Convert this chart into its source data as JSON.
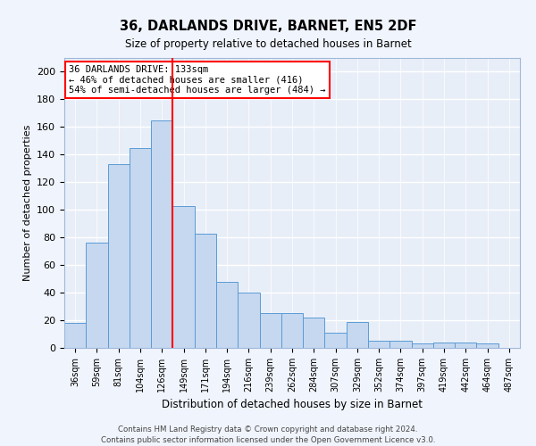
{
  "title1": "36, DARLANDS DRIVE, BARNET, EN5 2DF",
  "title2": "Size of property relative to detached houses in Barnet",
  "xlabel": "Distribution of detached houses by size in Barnet",
  "ylabel": "Number of detached properties",
  "categories": [
    "36sqm",
    "59sqm",
    "81sqm",
    "104sqm",
    "126sqm",
    "149sqm",
    "171sqm",
    "194sqm",
    "216sqm",
    "239sqm",
    "262sqm",
    "284sqm",
    "307sqm",
    "329sqm",
    "352sqm",
    "374sqm",
    "397sqm",
    "419sqm",
    "442sqm",
    "464sqm",
    "487sqm"
  ],
  "values": [
    18,
    76,
    133,
    145,
    165,
    103,
    83,
    48,
    40,
    25,
    25,
    22,
    11,
    19,
    5,
    5,
    3,
    4,
    4,
    3,
    0
  ],
  "bar_color": "#c5d8f0",
  "bar_edge_color": "#5b9bd5",
  "red_line_x": 4.5,
  "annotation_title": "36 DARLANDS DRIVE: 133sqm",
  "annotation_line1": "← 46% of detached houses are smaller (416)",
  "annotation_line2": "54% of semi-detached houses are larger (484) →",
  "ylim": [
    0,
    210
  ],
  "yticks": [
    0,
    20,
    40,
    60,
    80,
    100,
    120,
    140,
    160,
    180,
    200
  ],
  "background_color": "#e8eef8",
  "grid_color": "#ffffff",
  "footer1": "Contains HM Land Registry data © Crown copyright and database right 2024.",
  "footer2": "Contains public sector information licensed under the Open Government Licence v3.0."
}
